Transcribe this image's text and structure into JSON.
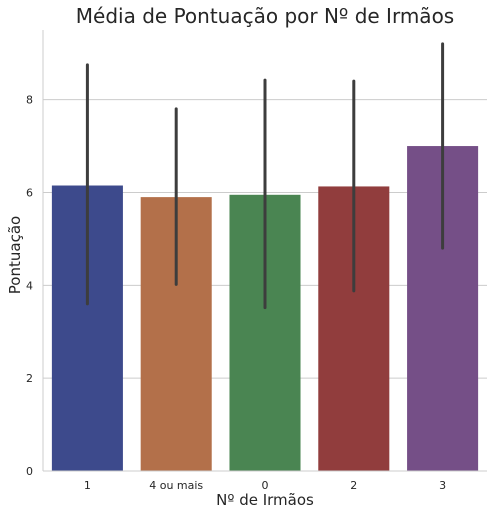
{
  "chart_data": {
    "type": "bar",
    "title": "Média de Pontuação por Nº de Irmãos",
    "xlabel": "Nº de Irmãos",
    "ylabel": "Pontuação",
    "ylim": [
      0,
      9.5
    ],
    "yticks": [
      "0",
      "2",
      "4",
      "6",
      "8"
    ],
    "grid": "y",
    "categories": [
      "1",
      "4 ou mais",
      "0",
      "2",
      "3"
    ],
    "values": [
      6.15,
      5.9,
      5.95,
      6.13,
      7.0
    ],
    "error_low": [
      3.6,
      4.02,
      3.52,
      3.88,
      4.8
    ],
    "error_high": [
      8.75,
      7.8,
      8.42,
      8.4,
      9.2
    ],
    "colors": [
      "#3d4a8c",
      "#b3704a",
      "#4a8552",
      "#913d3d",
      "#754f87"
    ]
  }
}
